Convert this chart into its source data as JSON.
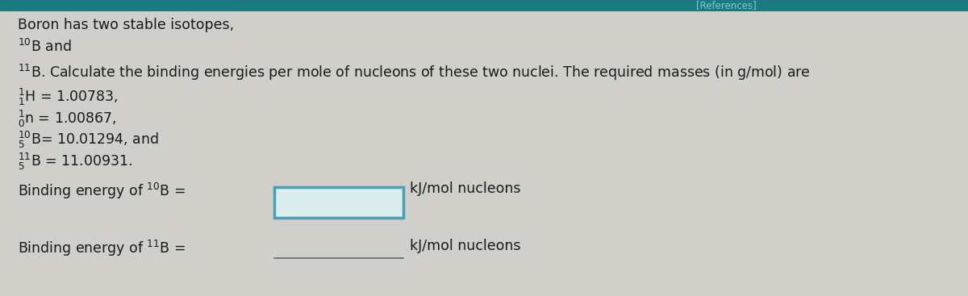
{
  "bg_color": "#d0cfc9",
  "top_bar_color": "#1a7a80",
  "top_bar_text": "[References]",
  "text_color": "#1a1a1a",
  "font_size_main": 12.5,
  "box1_fill": "#daeef0",
  "box1_border": "#4a9fb5",
  "box2_fill": "#d0cfc9",
  "box2_border": "#888888",
  "line1": "Boron has two stable isotopes,",
  "line2": "$^{10}$B and",
  "line3": "$^{11}$B. Calculate the binding energies per mole of nucleons of these two nuclei. The required masses (in g/mol) are",
  "line4": "$^{1}_{1}$H = 1.00783,",
  "line5": "$^{1}_{0}$n = 1.00867,",
  "line6": "$^{10}_{5}$B= 10.01294, and",
  "line7": "$^{11}_{5}$B = 11.00931.",
  "bind1_label": "Binding energy of $^{10}$B =",
  "bind2_label": "Binding energy of $^{11}$B =",
  "unit": "kJ/mol nucleons"
}
